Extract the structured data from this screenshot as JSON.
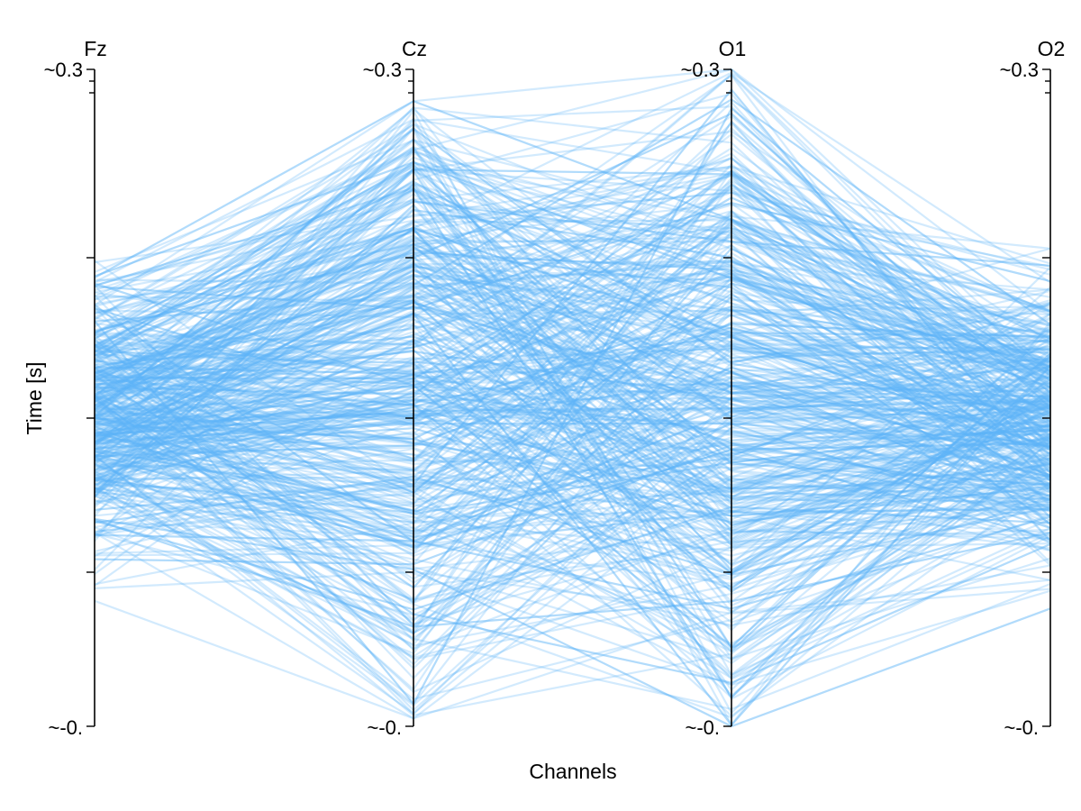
{
  "chart_data": {
    "type": "parallel-coordinates",
    "xlabel": "Channels",
    "ylabel": "Time [s]",
    "colors": {
      "line": "#5fb3f7",
      "axis": "#000000"
    },
    "n_lines": 520,
    "line_alpha": 0.28,
    "axes": [
      {
        "name": "Fz",
        "top_label": "~0.3",
        "bottom_label": "~-0.",
        "min": -0.03,
        "max": 0.3
      },
      {
        "name": "Cz",
        "top_label": "~0.3",
        "bottom_label": "~-0.",
        "min": -0.03,
        "max": 0.3
      },
      {
        "name": "O1",
        "top_label": "~0.3",
        "bottom_label": "~-0.",
        "min": -0.03,
        "max": 0.3
      },
      {
        "name": "O2",
        "top_label": "~0.3",
        "bottom_label": "~-0.",
        "min": -0.03,
        "max": 0.3
      }
    ],
    "value_ranges_observed": [
      {
        "name": "Fz",
        "low": 0.033,
        "high": 0.22
      },
      {
        "name": "Cz",
        "low": -0.026,
        "high": 0.284
      },
      {
        "name": "O1",
        "low": -0.03,
        "high": 0.3
      },
      {
        "name": "O2",
        "low": 0.0,
        "high": 0.21
      }
    ],
    "legend": "none",
    "grid": false
  }
}
